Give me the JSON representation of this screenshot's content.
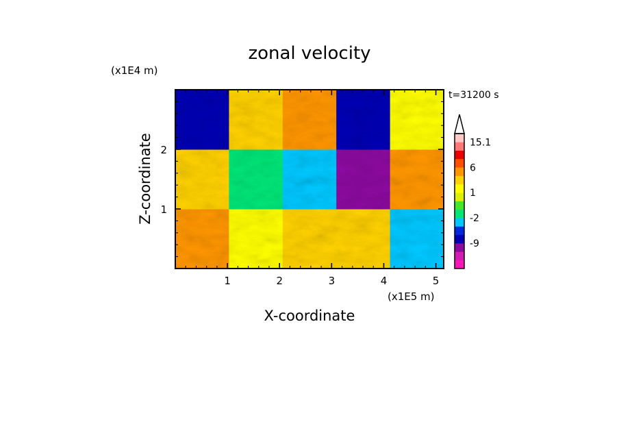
{
  "chart_data": {
    "type": "heatmap",
    "title": "zonal velocity",
    "xlabel": "X-coordinate",
    "ylabel": "Z-coordinate",
    "x_unit": "(x1E5 m)",
    "y_unit": "(x1E4 m)",
    "time_label": "t=31200 s",
    "xlim": [
      0,
      5.15
    ],
    "ylim": [
      0,
      3.0
    ],
    "x_ticks": [
      1,
      2,
      3,
      4,
      5
    ],
    "y_ticks": [
      1,
      2
    ],
    "colorbar": {
      "levels": [
        -15,
        -12,
        -9,
        -6,
        -4,
        -2,
        -1,
        0,
        1,
        2,
        4,
        6,
        9,
        12,
        15.1
      ],
      "tick_labels": [
        "15.1",
        "6",
        "1",
        "-2",
        "-9"
      ],
      "tick_values": [
        15.1,
        6,
        1,
        -2,
        -9
      ],
      "colors": [
        "#ff14b8",
        "#d21cb4",
        "#8c0aa0",
        "#0000b4",
        "#0028dc",
        "#00c8ff",
        "#00e678",
        "#46e628",
        "#dcf000",
        "#ffff00",
        "#ffd200",
        "#ff9600",
        "#ff5000",
        "#eb0000",
        "#ff7878",
        "#ffc8c8"
      ]
    },
    "data": {
      "rows": 3,
      "cols": 5,
      "x": [
        0.5,
        1.5,
        2.5,
        3.5,
        4.5
      ],
      "z": [
        0.5,
        1.5,
        2.5
      ],
      "values": [
        [
          5,
          2,
          4,
          3,
          -2
        ],
        [
          4,
          -1,
          -3,
          -9,
          6
        ],
        [
          -6,
          3,
          5,
          -8,
          2
        ]
      ]
    }
  }
}
